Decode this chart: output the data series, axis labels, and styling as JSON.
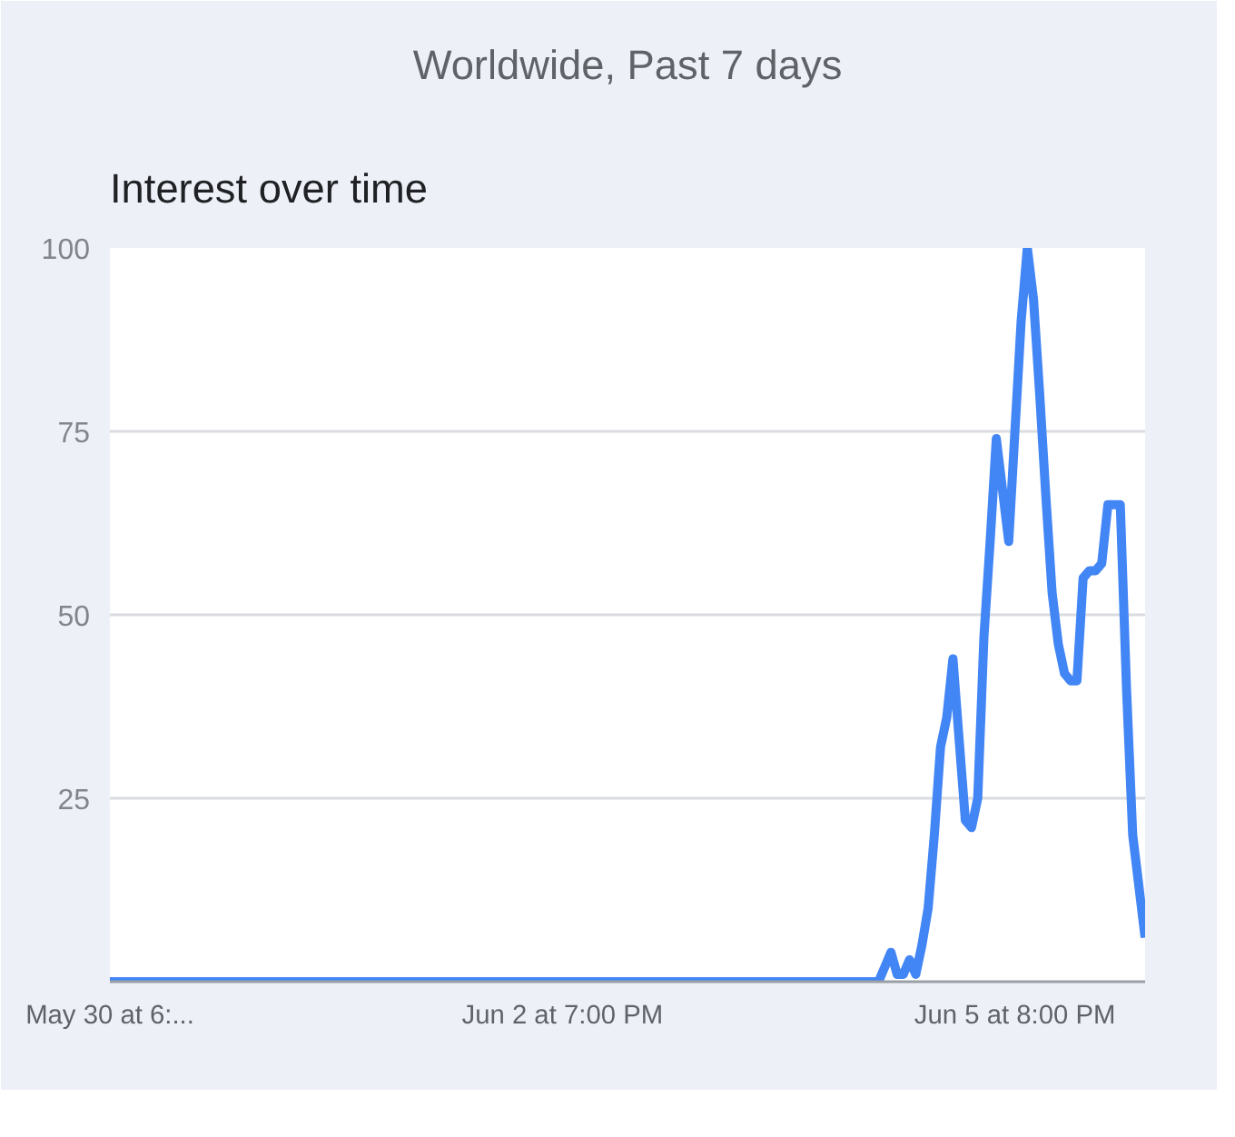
{
  "chart_data": {
    "type": "line",
    "title": "Interest over time",
    "subtitle": "Worldwide, Past 7 days",
    "categories": [
      "May 30 at 6:...",
      null,
      null,
      null,
      null,
      null,
      null,
      null,
      null,
      null,
      null,
      null,
      null,
      null,
      null,
      null,
      null,
      null,
      null,
      null,
      null,
      null,
      null,
      null,
      null,
      null,
      null,
      null,
      null,
      null,
      null,
      null,
      null,
      null,
      null,
      null,
      null,
      null,
      null,
      null,
      null,
      null,
      null,
      null,
      null,
      null,
      null,
      null,
      null,
      null,
      null,
      null,
      null,
      null,
      null,
      null,
      null,
      null,
      null,
      null,
      null,
      null,
      null,
      null,
      null,
      null,
      null,
      null,
      null,
      null,
      null,
      null,
      null,
      "Jun 2 at 7:00 PM",
      null,
      null,
      null,
      null,
      null,
      null,
      null,
      null,
      null,
      null,
      null,
      null,
      null,
      null,
      null,
      null,
      null,
      null,
      null,
      null,
      null,
      null,
      null,
      null,
      null,
      null,
      null,
      null,
      null,
      null,
      null,
      null,
      null,
      null,
      null,
      null,
      null,
      null,
      null,
      null,
      null,
      null,
      null,
      null,
      null,
      null,
      null,
      null,
      null,
      null,
      null,
      null,
      null,
      null,
      null,
      null,
      null,
      null,
      null,
      null,
      null,
      null,
      null,
      null,
      null,
      null,
      null,
      null,
      null,
      null,
      null,
      null,
      "Jun 5 at 8:00 PM",
      null,
      null,
      null,
      null,
      null,
      null,
      null,
      null,
      null,
      null,
      null,
      null,
      null,
      null,
      null,
      null,
      null,
      null,
      null,
      null,
      null
    ],
    "series": [
      {
        "color": "#4285f4",
        "values": [
          0,
          0,
          0,
          0,
          0,
          0,
          0,
          0,
          0,
          0,
          0,
          0,
          0,
          0,
          0,
          0,
          0,
          0,
          0,
          0,
          0,
          0,
          0,
          0,
          0,
          0,
          0,
          0,
          0,
          0,
          0,
          0,
          0,
          0,
          0,
          0,
          0,
          0,
          0,
          0,
          0,
          0,
          0,
          0,
          0,
          0,
          0,
          0,
          0,
          0,
          0,
          0,
          0,
          0,
          0,
          0,
          0,
          0,
          0,
          0,
          0,
          0,
          0,
          0,
          0,
          0,
          0,
          0,
          0,
          0,
          0,
          0,
          0,
          0,
          0,
          0,
          0,
          0,
          0,
          0,
          0,
          0,
          0,
          0,
          0,
          0,
          0,
          0,
          0,
          0,
          0,
          0,
          0,
          0,
          0,
          0,
          0,
          0,
          0,
          0,
          0,
          0,
          0,
          0,
          0,
          0,
          0,
          0,
          0,
          0,
          0,
          0,
          0,
          0,
          0,
          0,
          0,
          0,
          0,
          0,
          0,
          0,
          0,
          0,
          0,
          2,
          4,
          1,
          1,
          3,
          1,
          5,
          10,
          20,
          32,
          36,
          44,
          33,
          22,
          21,
          25,
          47,
          60,
          74,
          67,
          60,
          75,
          90,
          100,
          93,
          80,
          66,
          53,
          46,
          42,
          41,
          41,
          55,
          56,
          56,
          57,
          65,
          65,
          65,
          40,
          20,
          13,
          6
        ]
      }
    ],
    "ylim": [
      0,
      100
    ],
    "yticks": [
      25,
      50,
      75,
      100
    ],
    "grid": "y",
    "marker": "none",
    "line_style": "solid"
  }
}
